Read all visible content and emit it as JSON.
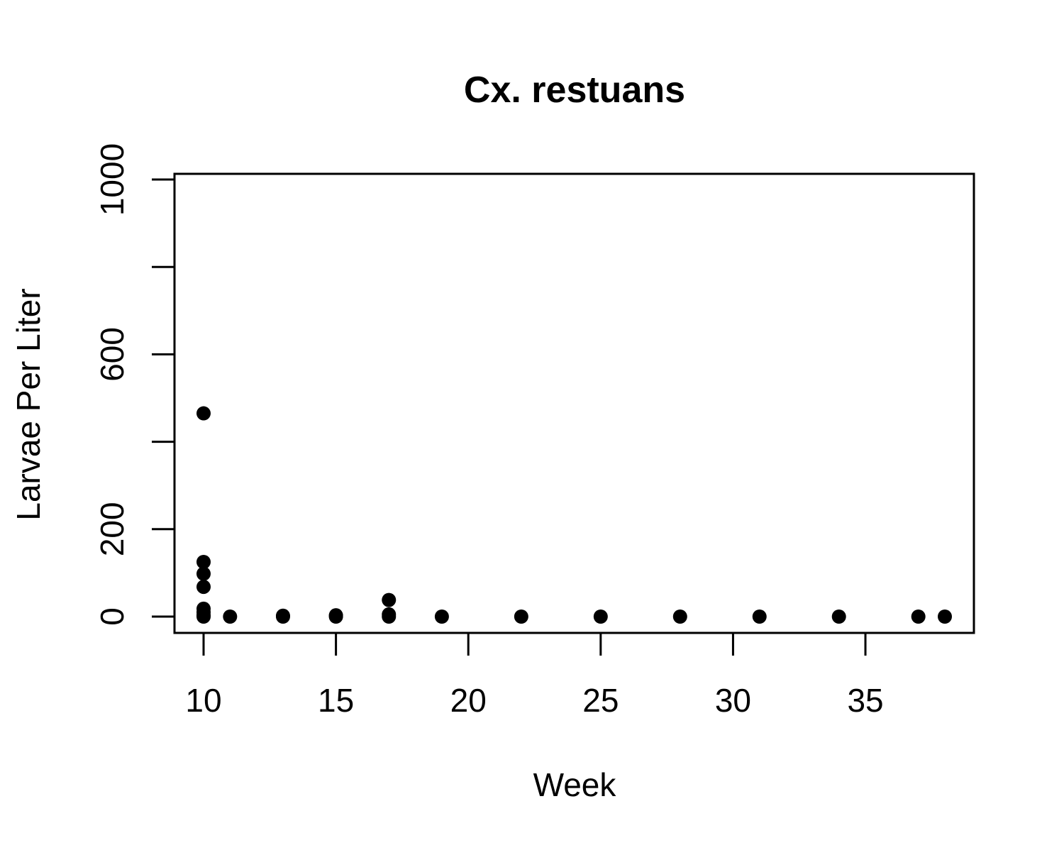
{
  "chart_data": {
    "type": "scatter",
    "title": "Cx. restuans",
    "xlabel": "Week",
    "ylabel": "Larvae Per Liter",
    "xlim": [
      9,
      39
    ],
    "ylim": [
      0,
      1000
    ],
    "x_ticks": [
      10,
      15,
      20,
      25,
      30,
      35
    ],
    "y_ticks": [
      0,
      200,
      400,
      600,
      800,
      1000
    ],
    "y_tick_labels": [
      "0",
      "200",
      "",
      "600",
      "",
      "1000"
    ],
    "grid": false,
    "legend": "none",
    "marker": "filled-circle",
    "marker_color": "#000000",
    "points": [
      {
        "x": 10,
        "y": 465
      },
      {
        "x": 10,
        "y": 125
      },
      {
        "x": 10,
        "y": 98
      },
      {
        "x": 10,
        "y": 68
      },
      {
        "x": 10,
        "y": 18
      },
      {
        "x": 10,
        "y": 10
      },
      {
        "x": 10,
        "y": 3
      },
      {
        "x": 10,
        "y": 0
      },
      {
        "x": 11,
        "y": 0
      },
      {
        "x": 13,
        "y": 2
      },
      {
        "x": 13,
        "y": 0
      },
      {
        "x": 15,
        "y": 3
      },
      {
        "x": 15,
        "y": 0
      },
      {
        "x": 17,
        "y": 38
      },
      {
        "x": 17,
        "y": 5
      },
      {
        "x": 17,
        "y": 0
      },
      {
        "x": 19,
        "y": 0
      },
      {
        "x": 22,
        "y": 0
      },
      {
        "x": 25,
        "y": 0
      },
      {
        "x": 28,
        "y": 0
      },
      {
        "x": 31,
        "y": 0
      },
      {
        "x": 34,
        "y": 0
      },
      {
        "x": 37,
        "y": 0
      },
      {
        "x": 38,
        "y": 0
      }
    ]
  }
}
